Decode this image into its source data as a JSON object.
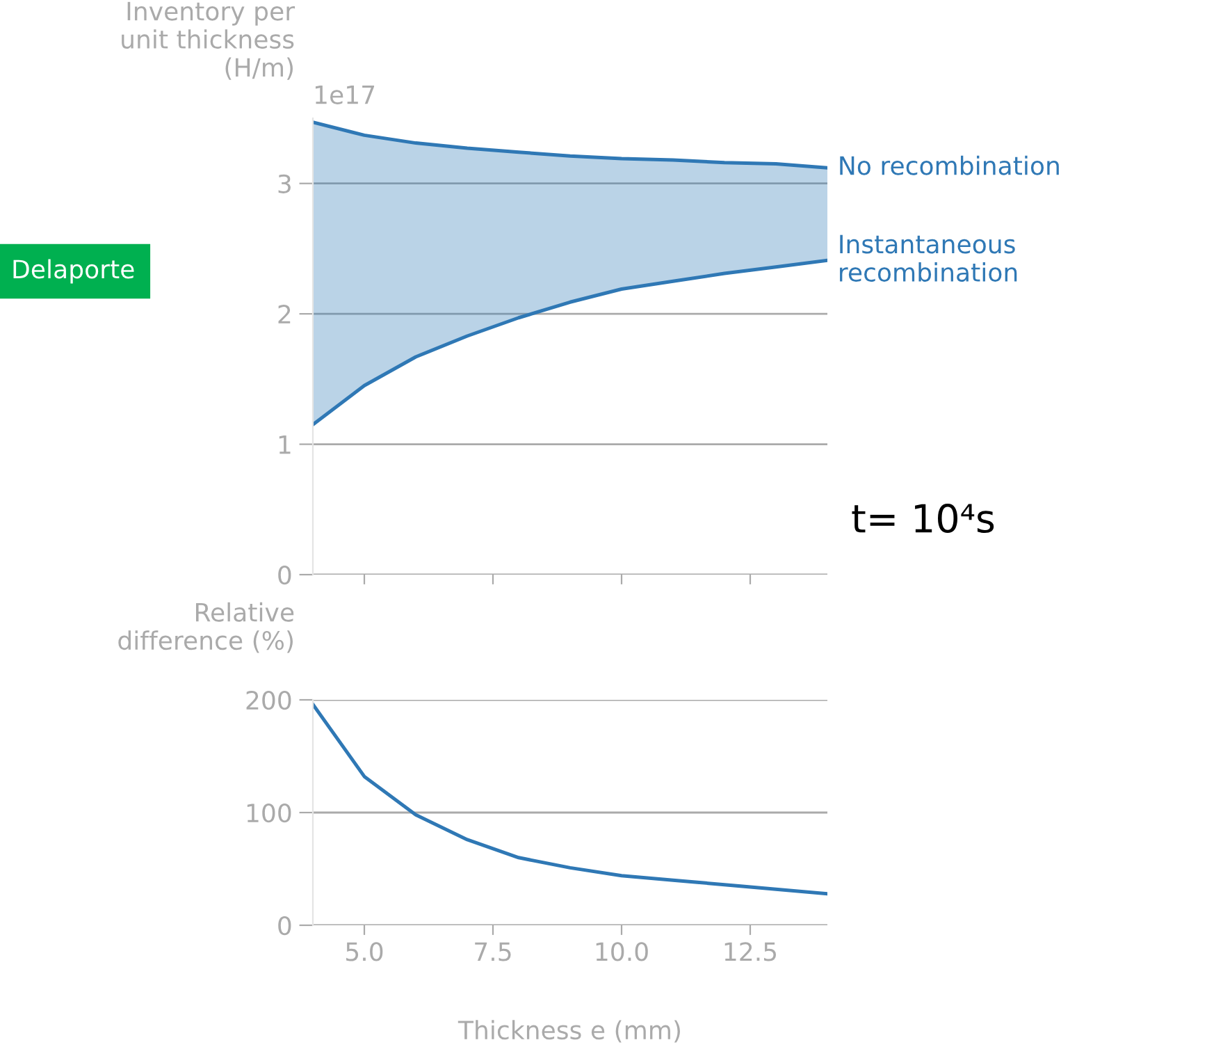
{
  "chart_data": [
    {
      "type": "area",
      "ylabel": "Inventory per\nunit thickness\n(H/m)",
      "x": [
        4,
        5,
        6,
        7,
        8,
        9,
        10,
        11,
        12,
        13,
        14
      ],
      "series": [
        {
          "name": "Instantaneous\nrecombination",
          "type": "line",
          "color": "#2f78b5",
          "values": [
            1.15,
            1.45,
            1.67,
            1.83,
            1.97,
            2.09,
            2.19,
            2.25,
            2.31,
            2.36,
            2.41
          ]
        },
        {
          "name": "No recombination",
          "type": "area",
          "color": "#2f78b5",
          "values": [
            3.47,
            3.37,
            3.31,
            3.27,
            3.24,
            3.21,
            3.19,
            3.18,
            3.16,
            3.15,
            3.12
          ]
        }
      ],
      "xlim": [
        4,
        14
      ],
      "xticks": [
        {
          "value": 5,
          "label": null
        },
        {
          "value": 7.5,
          "label": null
        },
        {
          "value": 10,
          "label": null
        },
        {
          "value": 12.5,
          "label": null
        }
      ],
      "ylim": [
        0,
        3.5
      ],
      "yticks": [
        0,
        1,
        2,
        3
      ],
      "grid": "y",
      "tick_labels": "y",
      "annotations": [
        "1e17",
        "Delaporte",
        "t= 10⁴s"
      ]
    },
    {
      "type": "line",
      "ylabel": "Relative\ndifference (%)",
      "xlabel": "Thickness e (mm)",
      "x": [
        4,
        5,
        6,
        7,
        8,
        9,
        10,
        11,
        12,
        13,
        14
      ],
      "series": [
        {
          "color": "#2f78b5",
          "values": [
            196,
            132,
            98,
            76,
            60,
            51,
            44,
            40,
            36,
            32,
            28
          ]
        }
      ],
      "xlim": [
        4,
        14
      ],
      "xticks": [
        {
          "value": 5,
          "label": "5.0"
        },
        {
          "value": 7.5,
          "label": "7.5"
        },
        {
          "value": 10,
          "label": "10.0"
        },
        {
          "value": 12.5,
          "label": "12.5"
        }
      ],
      "ylim": [
        0,
        200
      ],
      "yticks": [
        0,
        100,
        200
      ],
      "grid": "y"
    }
  ]
}
